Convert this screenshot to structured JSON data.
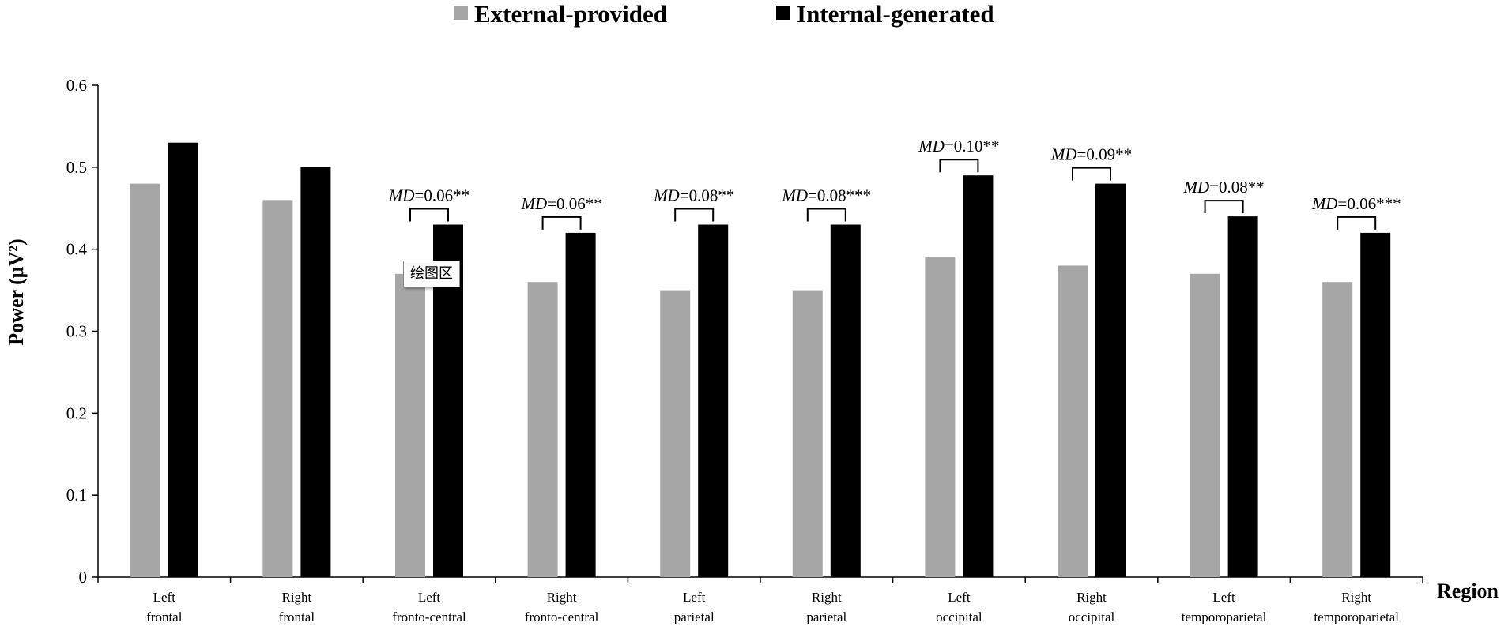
{
  "chart_data": {
    "type": "bar",
    "title": "",
    "xlabel": "Region",
    "ylabel": "Power (μV²)",
    "ylim": [
      0,
      0.6
    ],
    "yticks": [
      "0",
      "0.1",
      "0.2",
      "0.3",
      "0.4",
      "0.5",
      "0.6"
    ],
    "categories": [
      [
        "Left",
        "frontal"
      ],
      [
        "Right",
        "frontal"
      ],
      [
        "Left",
        "fronto-central"
      ],
      [
        "Right",
        "fronto-central"
      ],
      [
        "Left",
        "parietal"
      ],
      [
        "Right",
        "parietal"
      ],
      [
        "Left",
        "occipital"
      ],
      [
        "Right",
        "occipital"
      ],
      [
        "Left",
        "temporoparietal"
      ],
      [
        "Right",
        "temporoparietal"
      ]
    ],
    "series": [
      {
        "name": "External-provided",
        "color": "#a6a6a6",
        "values": [
          0.48,
          0.46,
          0.37,
          0.36,
          0.35,
          0.35,
          0.39,
          0.38,
          0.37,
          0.36
        ]
      },
      {
        "name": "Internal-generated",
        "color": "#000000",
        "values": [
          0.53,
          0.5,
          0.43,
          0.42,
          0.43,
          0.43,
          0.49,
          0.48,
          0.44,
          0.42
        ]
      }
    ],
    "legend_position": "top-center",
    "annotations": [
      null,
      null,
      {
        "prefix": "MD",
        "value": "=0.06**"
      },
      {
        "prefix": "MD",
        "value": "=0.06**"
      },
      {
        "prefix": "MD",
        "value": "=0.08**"
      },
      {
        "prefix": "MD",
        "value": "=0.08***"
      },
      {
        "prefix": "MD",
        "value": "=0.10**"
      },
      {
        "prefix": "MD",
        "value": "=0.09**"
      },
      {
        "prefix": "MD",
        "value": "=0.08**"
      },
      {
        "prefix": "MD",
        "value": "=0.06***"
      }
    ]
  },
  "tooltip": {
    "text": "绘图区"
  }
}
